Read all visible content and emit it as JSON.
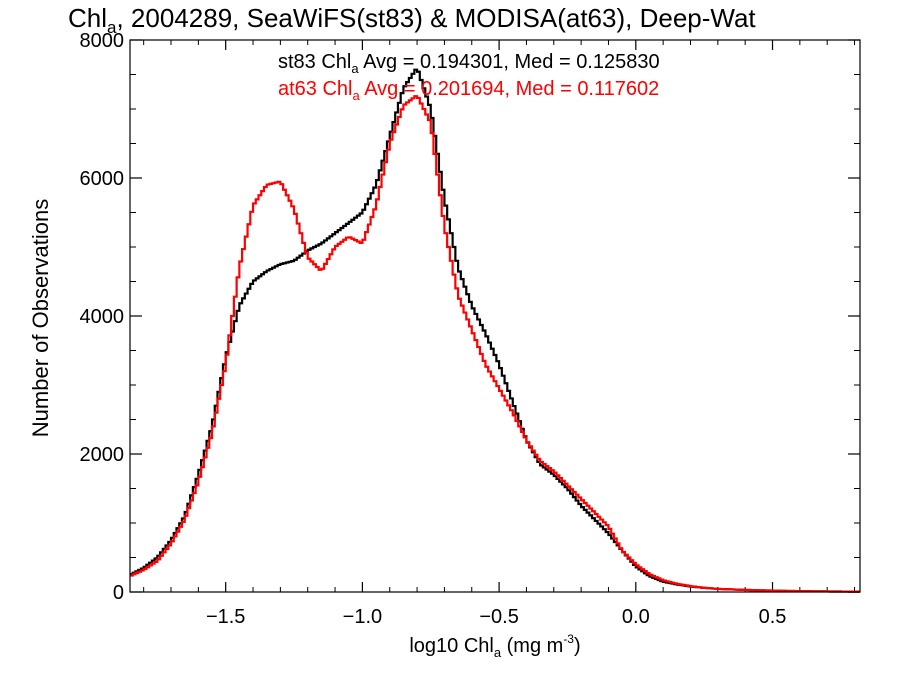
{
  "chart_data": {
    "type": "line",
    "title": "Chl",
    "title_subscript": "a",
    "title_rest": ", 2004289, SeaWiFS(st83) & MODISA(at63), Deep-Wat",
    "xlabel_prefix": "log10 Chl",
    "xlabel_sub": "a",
    "xlabel_units": " (mg m",
    "xlabel_sup": "-3",
    "xlabel_close": ")",
    "ylabel": "Number of Observations",
    "xlim": [
      -1.85,
      0.82
    ],
    "ylim": [
      0,
      8000
    ],
    "x_ticks": [
      -1.5,
      -1.0,
      -0.5,
      0.0,
      0.5
    ],
    "x_tick_labels": [
      "−1.5",
      "−1.0",
      "−0.5",
      "0.0",
      "0.5"
    ],
    "y_ticks": [
      0,
      2000,
      4000,
      6000,
      8000
    ],
    "y_tick_labels": [
      "0",
      "2000",
      "4000",
      "6000",
      "8000"
    ],
    "legend_placement": "top-center",
    "annotations": [
      {
        "prefix": "st83 Chl",
        "sub": "a",
        "text": " Avg = 0.194301, Med = 0.125830",
        "color": "#000000"
      },
      {
        "prefix": "at63 Chl",
        "sub": "a",
        "text": " Avg = 0.201694, Med = 0.117602",
        "color": "#ff0000"
      }
    ],
    "series": [
      {
        "color": "#000000",
        "style": "step",
        "x": [
          -1.85,
          -1.8,
          -1.75,
          -1.7,
          -1.65,
          -1.6,
          -1.55,
          -1.5,
          -1.45,
          -1.4,
          -1.35,
          -1.3,
          -1.25,
          -1.2,
          -1.15,
          -1.1,
          -1.05,
          -1.0,
          -0.95,
          -0.9,
          -0.85,
          -0.8,
          -0.75,
          -0.7,
          -0.65,
          -0.6,
          -0.55,
          -0.5,
          -0.45,
          -0.4,
          -0.35,
          -0.3,
          -0.25,
          -0.2,
          -0.15,
          -0.1,
          -0.05,
          0.0,
          0.05,
          0.1,
          0.15,
          0.2,
          0.25,
          0.3,
          0.4,
          0.5,
          0.6,
          0.7,
          0.82
        ],
        "y": [
          250,
          350,
          500,
          750,
          1100,
          1700,
          2400,
          3400,
          4150,
          4500,
          4650,
          4750,
          4800,
          4950,
          5050,
          5200,
          5350,
          5500,
          5900,
          6600,
          7300,
          7600,
          7000,
          5700,
          4700,
          4150,
          3750,
          3300,
          2750,
          2200,
          1850,
          1700,
          1500,
          1250,
          1050,
          850,
          600,
          370,
          230,
          150,
          110,
          80,
          60,
          45,
          30,
          20,
          12,
          8,
          5
        ]
      },
      {
        "color": "#ff0000",
        "style": "step",
        "x": [
          -1.85,
          -1.8,
          -1.75,
          -1.7,
          -1.65,
          -1.6,
          -1.55,
          -1.5,
          -1.45,
          -1.4,
          -1.35,
          -1.3,
          -1.25,
          -1.2,
          -1.15,
          -1.1,
          -1.05,
          -1.0,
          -0.95,
          -0.9,
          -0.85,
          -0.8,
          -0.75,
          -0.7,
          -0.65,
          -0.6,
          -0.55,
          -0.5,
          -0.45,
          -0.4,
          -0.35,
          -0.3,
          -0.25,
          -0.2,
          -0.15,
          -0.1,
          -0.05,
          0.0,
          0.05,
          0.1,
          0.15,
          0.2,
          0.25,
          0.3,
          0.4,
          0.5,
          0.6,
          0.7,
          0.82
        ],
        "y": [
          230,
          320,
          450,
          700,
          1050,
          1600,
          2300,
          3300,
          4700,
          5600,
          5900,
          5950,
          5550,
          4850,
          4650,
          5000,
          5150,
          5050,
          5600,
          6500,
          7050,
          7200,
          6800,
          5300,
          4300,
          3800,
          3300,
          2950,
          2600,
          2200,
          1900,
          1750,
          1550,
          1350,
          1150,
          950,
          600,
          400,
          260,
          170,
          120,
          85,
          60,
          45,
          30,
          20,
          12,
          8,
          5
        ]
      }
    ]
  }
}
